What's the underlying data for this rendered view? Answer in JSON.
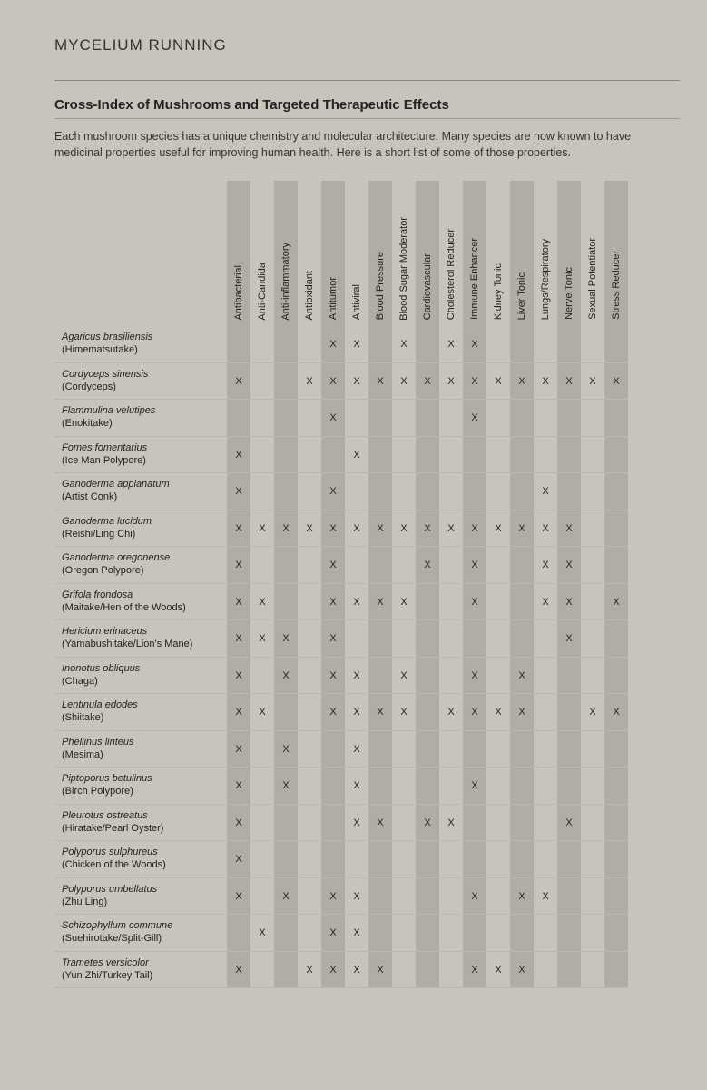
{
  "page_header": "MYCELIUM RUNNING",
  "title": "Cross-Index of Mushrooms and Targeted Therapeutic Effects",
  "intro": "Each mushroom species has a unique chemistry and molecular architecture. Many species are now known to have medicinal properties useful for improving human health. Here is a short list of some of those properties.",
  "columns": [
    "Antibacterial",
    "Anti-Candida",
    "Anti-inflammatory",
    "Antioxidant",
    "Antitumor",
    "Antiviral",
    "Blood Pressure",
    "Blood Sugar Moderator",
    "Cardiovascular",
    "Cholesterol Reducer",
    "Immune Enhancer",
    "Kidney Tonic",
    "Liver Tonic",
    "Lungs/Respiratory",
    "Nerve Tonic",
    "Sexual Potentiator",
    "Stress Reducer"
  ],
  "rows": [
    {
      "sci": "Agaricus brasiliensis",
      "common": "(Himematsutake)",
      "marks": [
        0,
        0,
        0,
        0,
        1,
        1,
        0,
        1,
        0,
        1,
        1,
        0,
        0,
        0,
        0,
        0,
        0
      ]
    },
    {
      "sci": "Cordyceps sinensis",
      "common": "(Cordyceps)",
      "marks": [
        1,
        0,
        0,
        1,
        1,
        1,
        1,
        1,
        1,
        1,
        1,
        1,
        1,
        1,
        1,
        1,
        1
      ]
    },
    {
      "sci": "Flammulina velutipes",
      "common": "(Enokitake)",
      "marks": [
        0,
        0,
        0,
        0,
        1,
        0,
        0,
        0,
        0,
        0,
        1,
        0,
        0,
        0,
        0,
        0,
        0
      ]
    },
    {
      "sci": "Fomes fomentarius",
      "common": "(Ice Man Polypore)",
      "marks": [
        1,
        0,
        0,
        0,
        0,
        1,
        0,
        0,
        0,
        0,
        0,
        0,
        0,
        0,
        0,
        0,
        0
      ]
    },
    {
      "sci": "Ganoderma applanatum",
      "common": "(Artist Conk)",
      "marks": [
        1,
        0,
        0,
        0,
        1,
        0,
        0,
        0,
        0,
        0,
        0,
        0,
        0,
        1,
        0,
        0,
        0
      ]
    },
    {
      "sci": "Ganoderma lucidum",
      "common": "(Reishi/Ling Chi)",
      "marks": [
        1,
        1,
        1,
        1,
        1,
        1,
        1,
        1,
        1,
        1,
        1,
        1,
        1,
        1,
        1,
        0,
        0
      ]
    },
    {
      "sci": "Ganoderma oregonense",
      "common": "(Oregon Polypore)",
      "marks": [
        1,
        0,
        0,
        0,
        1,
        0,
        0,
        0,
        1,
        0,
        1,
        0,
        0,
        1,
        1,
        0,
        0
      ]
    },
    {
      "sci": "Grifola frondosa",
      "common": "(Maitake/Hen of the Woods)",
      "marks": [
        1,
        1,
        0,
        0,
        1,
        1,
        1,
        1,
        0,
        0,
        1,
        0,
        0,
        1,
        1,
        0,
        1
      ]
    },
    {
      "sci": "Hericium erinaceus",
      "common": "(Yamabushitake/Lion's Mane)",
      "marks": [
        1,
        1,
        1,
        0,
        1,
        0,
        0,
        0,
        0,
        0,
        0,
        0,
        0,
        0,
        1,
        0,
        0
      ]
    },
    {
      "sci": "Inonotus obliquus",
      "common": " (Chaga)",
      "marks": [
        1,
        0,
        1,
        0,
        1,
        1,
        0,
        1,
        0,
        0,
        1,
        0,
        1,
        0,
        0,
        0,
        0
      ]
    },
    {
      "sci": "Lentinula edodes",
      "common": " (Shiitake)",
      "marks": [
        1,
        1,
        0,
        0,
        1,
        1,
        1,
        1,
        0,
        1,
        1,
        1,
        1,
        0,
        0,
        1,
        1
      ]
    },
    {
      "sci": "Phellinus linteus",
      "common": " (Mesima)",
      "marks": [
        1,
        0,
        1,
        0,
        0,
        1,
        0,
        0,
        0,
        0,
        0,
        0,
        0,
        0,
        0,
        0,
        0
      ]
    },
    {
      "sci": "Piptoporus betulinus",
      "common": "(Birch Polypore)",
      "marks": [
        1,
        0,
        1,
        0,
        0,
        1,
        0,
        0,
        0,
        0,
        1,
        0,
        0,
        0,
        0,
        0,
        0
      ]
    },
    {
      "sci": "Pleurotus ostreatus",
      "common": "(Hiratake/Pearl Oyster)",
      "marks": [
        1,
        0,
        0,
        0,
        0,
        1,
        1,
        0,
        1,
        1,
        0,
        0,
        0,
        0,
        1,
        0,
        0
      ]
    },
    {
      "sci": "Polyporus sulphureus",
      "common": "(Chicken of the Woods)",
      "marks": [
        1,
        0,
        0,
        0,
        0,
        0,
        0,
        0,
        0,
        0,
        0,
        0,
        0,
        0,
        0,
        0,
        0
      ]
    },
    {
      "sci": "Polyporus umbellatus",
      "common": "(Zhu Ling)",
      "marks": [
        1,
        0,
        1,
        0,
        1,
        1,
        0,
        0,
        0,
        0,
        1,
        0,
        1,
        1,
        0,
        0,
        0
      ]
    },
    {
      "sci": "Schizophyllum commune",
      "common": "(Suehirotake/Split-Gill)",
      "marks": [
        0,
        1,
        0,
        0,
        1,
        1,
        0,
        0,
        0,
        0,
        0,
        0,
        0,
        0,
        0,
        0,
        0
      ]
    },
    {
      "sci": "Trametes versicolor",
      "common": "(Yun Zhi/Turkey Tail)",
      "marks": [
        1,
        0,
        0,
        1,
        1,
        1,
        1,
        0,
        0,
        0,
        1,
        1,
        1,
        0,
        0,
        0,
        0
      ]
    }
  ],
  "colors": {
    "page_bg": "#c8c4bc",
    "shade_bg": "#b2ada4",
    "border": "#bcb8b0",
    "text": "#222222"
  },
  "mark_glyph": "X"
}
